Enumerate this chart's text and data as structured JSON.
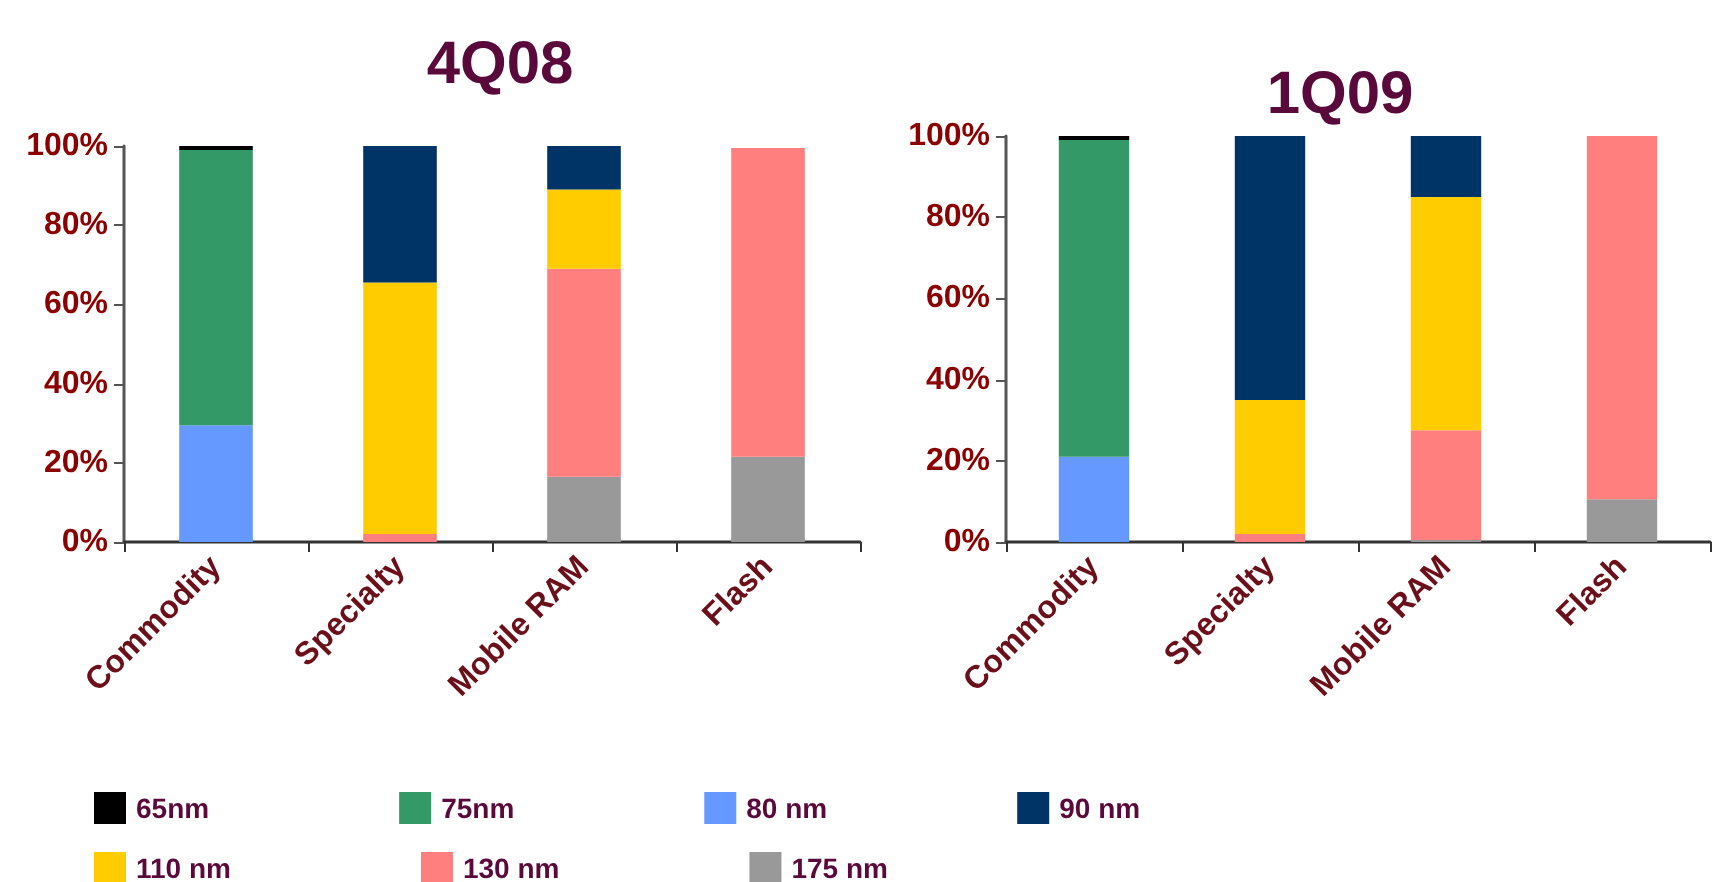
{
  "chart_data": [
    {
      "type": "bar",
      "title": "4Q08",
      "stacked": true,
      "legend": "bottom",
      "grid": false,
      "categories": [
        "Commodity",
        "Specialty",
        "Mobile RAM",
        "Flash"
      ],
      "ylim": [
        0,
        100
      ],
      "yticks": [
        {
          "value": 0,
          "label": "0%"
        },
        {
          "value": 20,
          "label": "20%"
        },
        {
          "value": 40,
          "label": "40%"
        },
        {
          "value": 60,
          "label": "60%"
        },
        {
          "value": 80,
          "label": "80%"
        },
        {
          "value": 100,
          "label": "100%"
        }
      ],
      "series": [
        {
          "name": "175 nm",
          "color": "#999999",
          "values": [
            0,
            0,
            16.5,
            21.5
          ]
        },
        {
          "name": "130 nm",
          "color": "#ff7f7f",
          "values": [
            0,
            2,
            52.5,
            78
          ]
        },
        {
          "name": "110 nm",
          "color": "#ffcc00",
          "values": [
            0,
            63.5,
            20,
            0
          ]
        },
        {
          "name": "90 nm",
          "color": "#003366",
          "values": [
            0,
            34.5,
            11,
            0
          ]
        },
        {
          "name": "80 nm",
          "color": "#6699ff",
          "values": [
            29.5,
            0,
            0,
            0
          ]
        },
        {
          "name": "75nm",
          "color": "#339966",
          "values": [
            69.5,
            0,
            0,
            0
          ]
        },
        {
          "name": "65nm",
          "color": "#000000",
          "values": [
            1,
            0,
            0,
            0
          ]
        }
      ]
    },
    {
      "type": "bar",
      "title": "1Q09",
      "stacked": true,
      "legend": "bottom",
      "grid": false,
      "categories": [
        "Commodity",
        "Specialty",
        "Mobile RAM",
        "Flash"
      ],
      "ylim": [
        0,
        100
      ],
      "yticks": [
        {
          "value": 0,
          "label": "0%"
        },
        {
          "value": 20,
          "label": "20%"
        },
        {
          "value": 40,
          "label": "40%"
        },
        {
          "value": 60,
          "label": "60%"
        },
        {
          "value": 80,
          "label": "80%"
        },
        {
          "value": 100,
          "label": "100%"
        }
      ],
      "series": [
        {
          "name": "175 nm",
          "color": "#999999",
          "values": [
            0,
            0,
            0.5,
            10.5
          ]
        },
        {
          "name": "130 nm",
          "color": "#ff7f7f",
          "values": [
            0,
            2,
            27,
            89.5
          ]
        },
        {
          "name": "110 nm",
          "color": "#ffcc00",
          "values": [
            0,
            33,
            57.5,
            0
          ]
        },
        {
          "name": "90 nm",
          "color": "#003366",
          "values": [
            0,
            65,
            15,
            0
          ]
        },
        {
          "name": "80 nm",
          "color": "#6699ff",
          "values": [
            21,
            0,
            0,
            0
          ]
        },
        {
          "name": "75nm",
          "color": "#339966",
          "values": [
            78,
            0,
            0,
            0
          ]
        },
        {
          "name": "65nm",
          "color": "#000000",
          "values": [
            1,
            0,
            0,
            0
          ]
        }
      ]
    }
  ]
}
